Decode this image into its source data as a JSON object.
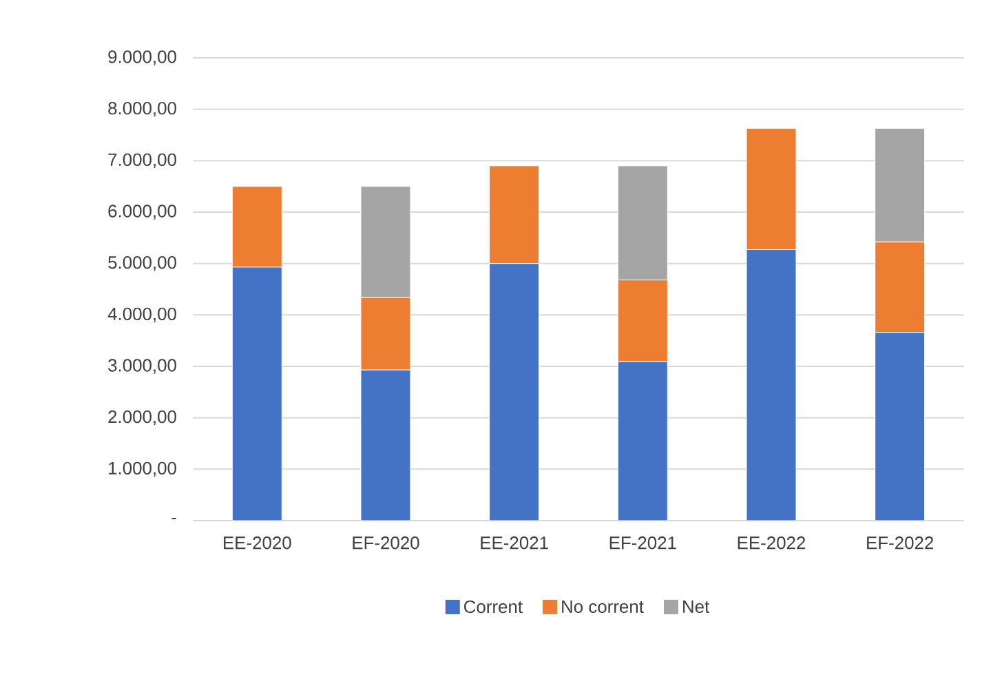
{
  "chart_data": {
    "type": "bar",
    "stacked": true,
    "categories": [
      "EE-2020",
      "EF-2020",
      "EE-2021",
      "EF-2021",
      "EE-2022",
      "EF-2022"
    ],
    "series": [
      {
        "name": "Corrent",
        "color": "#4472c4",
        "values": [
          4930,
          2930,
          5000,
          3090,
          5270,
          3660
        ]
      },
      {
        "name": "No corrent",
        "color": "#ed7d31",
        "values": [
          1570,
          1410,
          1900,
          1590,
          2360,
          1760
        ]
      },
      {
        "name": "Net",
        "color": "#a5a5a5",
        "values": [
          null,
          2160,
          null,
          2220,
          null,
          2210
        ]
      }
    ],
    "ylim": [
      0,
      9000
    ],
    "yticks": [
      {
        "value": 0,
        "label": "-"
      },
      {
        "value": 1000,
        "label": "1.000,00"
      },
      {
        "value": 2000,
        "label": "2.000,00"
      },
      {
        "value": 3000,
        "label": "3.000,00"
      },
      {
        "value": 4000,
        "label": "4.000,00"
      },
      {
        "value": 5000,
        "label": "5.000,00"
      },
      {
        "value": 6000,
        "label": "6.000,00"
      },
      {
        "value": 7000,
        "label": "7.000,00"
      },
      {
        "value": 8000,
        "label": "8.000,00"
      },
      {
        "value": 9000,
        "label": "9.000,00"
      }
    ],
    "grid": "y",
    "legend": "bottom"
  }
}
